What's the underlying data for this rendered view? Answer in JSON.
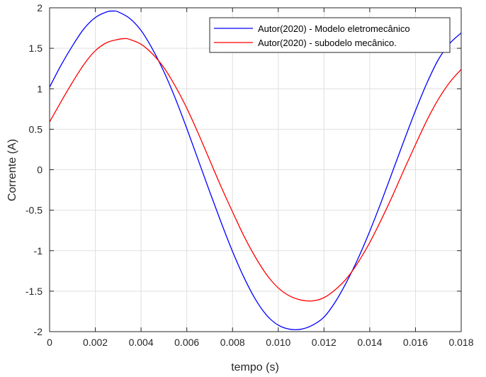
{
  "chart_data": {
    "type": "line",
    "xlabel": "tempo (s)",
    "ylabel": "Corrente (A)",
    "xlim": [
      0,
      0.018
    ],
    "ylim": [
      -2,
      2
    ],
    "xticks": [
      0,
      0.002,
      0.004,
      0.006,
      0.008,
      0.01,
      0.012,
      0.014,
      0.016,
      0.018
    ],
    "xtick_labels": [
      "0",
      "0.002",
      "0.004",
      "0.006",
      "0.008",
      "0.010",
      "0.012",
      "0.014",
      "0.016",
      "0.018"
    ],
    "yticks": [
      2,
      1.5,
      1,
      0.5,
      0,
      -0.5,
      -1,
      -1.5,
      -2
    ],
    "ytick_labels": [
      "2",
      "1.5",
      "1",
      "0.5",
      "0",
      "-0.5",
      "-1",
      "-1.5",
      "-2"
    ],
    "grid": true,
    "legend_position": "top-right",
    "series": [
      {
        "name": "Autor(2020) - Modelo eletromecânico",
        "color": "#0000ff",
        "x": [
          0,
          0.0005,
          0.001,
          0.0015,
          0.002,
          0.0025,
          0.0028,
          0.003,
          0.0035,
          0.004,
          0.0045,
          0.005,
          0.0055,
          0.006,
          0.0065,
          0.007,
          0.0075,
          0.008,
          0.0085,
          0.009,
          0.0095,
          0.01,
          0.0105,
          0.011,
          0.0115,
          0.012,
          0.0125,
          0.013,
          0.0135,
          0.014,
          0.0145,
          0.015,
          0.0155,
          0.016,
          0.0165,
          0.017,
          0.0175,
          0.018
        ],
        "y": [
          1.02,
          1.29,
          1.53,
          1.74,
          1.88,
          1.95,
          1.96,
          1.95,
          1.87,
          1.72,
          1.49,
          1.21,
          0.88,
          0.51,
          0.12,
          -0.27,
          -0.65,
          -1.01,
          -1.33,
          -1.6,
          -1.8,
          -1.92,
          -1.97,
          -1.97,
          -1.92,
          -1.82,
          -1.63,
          -1.38,
          -1.09,
          -0.76,
          -0.4,
          -0.02,
          0.36,
          0.73,
          1.07,
          1.36,
          1.56,
          1.69
        ]
      },
      {
        "name": "Autor(2020) - subodelo mecânico.",
        "color": "#ff0000",
        "x": [
          0,
          0.0005,
          0.001,
          0.0015,
          0.002,
          0.0025,
          0.003,
          0.0033,
          0.0035,
          0.004,
          0.0045,
          0.005,
          0.0055,
          0.006,
          0.0065,
          0.007,
          0.0075,
          0.008,
          0.0085,
          0.009,
          0.0095,
          0.01,
          0.0105,
          0.011,
          0.0115,
          0.012,
          0.0125,
          0.013,
          0.0135,
          0.014,
          0.0145,
          0.015,
          0.0155,
          0.016,
          0.0165,
          0.017,
          0.0175,
          0.018
        ],
        "y": [
          0.59,
          0.84,
          1.08,
          1.3,
          1.47,
          1.57,
          1.61,
          1.62,
          1.61,
          1.55,
          1.43,
          1.26,
          1.03,
          0.76,
          0.45,
          0.12,
          -0.21,
          -0.52,
          -0.82,
          -1.08,
          -1.3,
          -1.46,
          -1.56,
          -1.61,
          -1.62,
          -1.58,
          -1.48,
          -1.34,
          -1.14,
          -0.9,
          -0.62,
          -0.32,
          0.0,
          0.31,
          0.61,
          0.87,
          1.08,
          1.24
        ]
      }
    ]
  }
}
